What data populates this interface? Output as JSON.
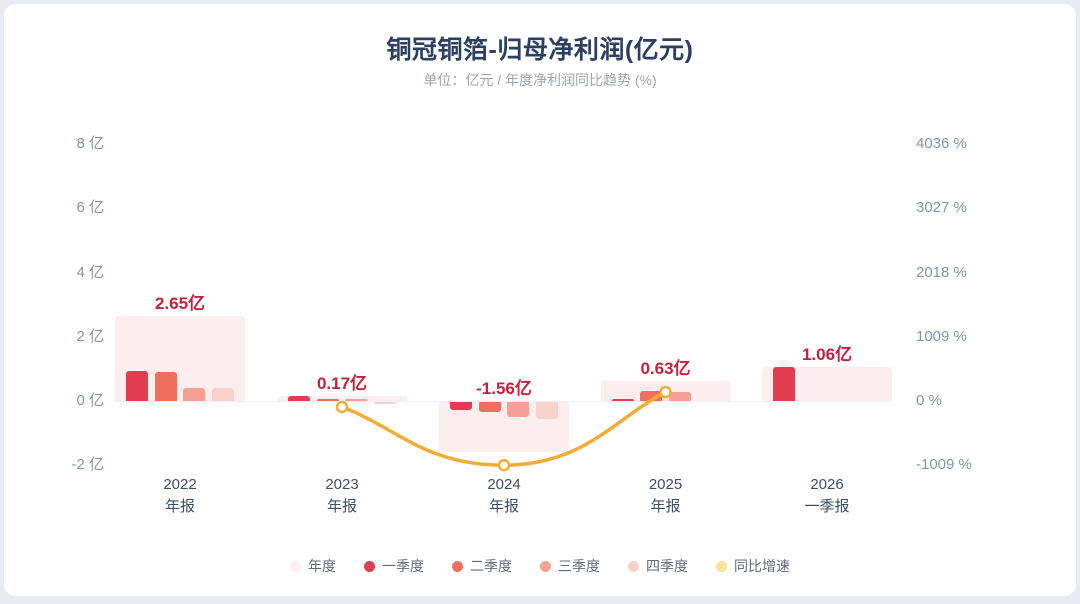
{
  "chart_data": {
    "type": "bar+line",
    "title": "铜冠铜箔-归母净利润(亿元)",
    "subtitle": "单位：亿元 / 年度净利润同比趋势 (%)",
    "left_axis": {
      "unit": "亿",
      "ticks": [
        8,
        6,
        4,
        2,
        0,
        -2
      ],
      "labels": [
        "8 亿",
        "6 亿",
        "4 亿",
        "2 亿",
        "0 亿",
        "-2 亿"
      ]
    },
    "right_axis": {
      "unit": "%",
      "ticks": [
        4036,
        3027,
        2018,
        1009,
        0,
        -1009
      ],
      "labels": [
        "4036 %",
        "3027 %",
        "2018 %",
        "1009 %",
        "0 %",
        "-1009 %"
      ]
    },
    "groups": [
      {
        "year": "2022",
        "x_label": [
          "2022",
          "年报"
        ],
        "annual": 2.65,
        "annual_label": "2.65亿",
        "quarters": [
          0.95,
          0.9,
          0.4,
          0.4
        ]
      },
      {
        "year": "2023",
        "x_label": [
          "2023",
          "年报"
        ],
        "annual": 0.17,
        "annual_label": "0.17亿",
        "quarters": [
          0.16,
          0.04,
          0.02,
          -0.05
        ]
      },
      {
        "year": "2024",
        "x_label": [
          "2024",
          "年报"
        ],
        "annual": -1.56,
        "annual_label": "-1.56亿",
        "quarters": [
          -0.25,
          -0.31,
          -0.47,
          -0.53
        ]
      },
      {
        "year": "2025",
        "x_label": [
          "2025",
          "年报"
        ],
        "annual": 0.63,
        "annual_label": "0.63亿",
        "quarters": [
          0.05,
          0.31,
          0.27,
          null
        ]
      },
      {
        "year": "2026",
        "x_label": [
          "2026",
          "一季报"
        ],
        "annual": 1.06,
        "annual_label": "1.06亿",
        "quarters": [
          1.06,
          null,
          null,
          null
        ]
      }
    ],
    "yoy_line": {
      "name": "同比增速",
      "points": [
        {
          "group": 1,
          "year": "2023",
          "pct": -94
        },
        {
          "group": 2,
          "year": "2024",
          "pct": -1009
        },
        {
          "group": 3,
          "year": "2025",
          "pct": 140
        }
      ]
    },
    "legend": [
      {
        "label": "年度",
        "color": "#fdeff0"
      },
      {
        "label": "一季度",
        "color": "#e23c50"
      },
      {
        "label": "二季度",
        "color": "#ee6f5e"
      },
      {
        "label": "三季度",
        "color": "#f5a094"
      },
      {
        "label": "四季度",
        "color": "#f9d1cb"
      },
      {
        "label": "同比增速",
        "color": "#f8e596"
      }
    ],
    "colors": {
      "annual_bar": "#fcedef",
      "quarter_bars": [
        "#e23c50",
        "#ee6f5e",
        "#f5a094",
        "#f9d1cb"
      ],
      "yoy_line": "#f5ab35",
      "value_label": "#c5203c",
      "title": "#2b3f63",
      "axis_label": "#7f95b3",
      "x_label": "#3d4e68"
    }
  }
}
